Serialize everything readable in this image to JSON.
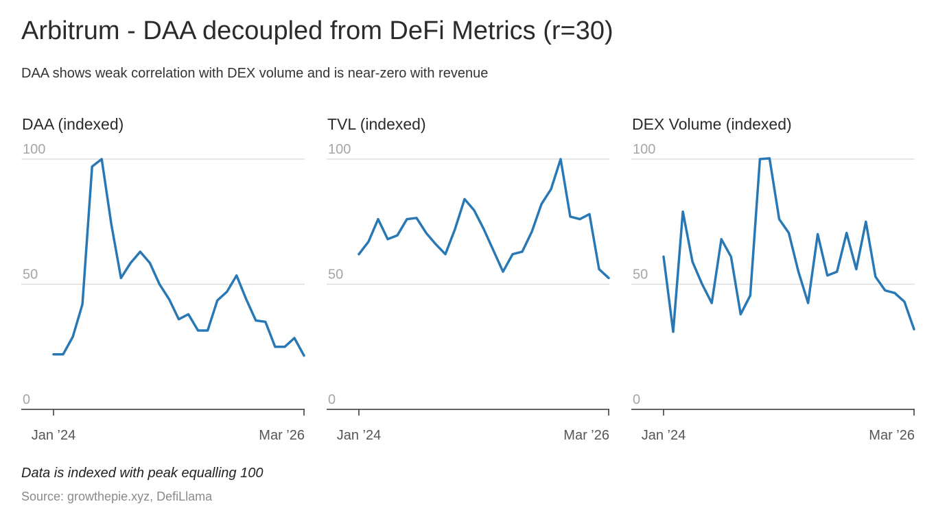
{
  "title": "Arbitrum - DAA decoupled from DeFi Metrics (r=30)",
  "subtitle": "DAA shows weak correlation with DEX volume and is near-zero with revenue",
  "note": "Data is indexed with peak equalling 100",
  "source": "Source: growthepie.xyz, DefiLlama",
  "colors": {
    "line": "#2878b5",
    "grid": "#dddddd",
    "axis": "#333333",
    "tick": "#a6a6a6"
  },
  "chart_data": [
    {
      "type": "line",
      "title": "DAA (indexed)",
      "ylim": [
        0,
        100
      ],
      "yticks": [
        0,
        50,
        100
      ],
      "xtick_labels": [
        "Jan ’24",
        "Mar ’26"
      ],
      "values": [
        22,
        22,
        29,
        42,
        97,
        100,
        74,
        52.5,
        58.5,
        63,
        58.5,
        50,
        44,
        36,
        38,
        31.5,
        31.5,
        43.5,
        47,
        53.5,
        44,
        35.5,
        35,
        25,
        25,
        28.5,
        21.5
      ]
    },
    {
      "type": "line",
      "title": "TVL (indexed)",
      "ylim": [
        0,
        100
      ],
      "yticks": [
        0,
        50,
        100
      ],
      "xtick_labels": [
        "Jan ’24",
        "Mar ’26"
      ],
      "values": [
        62,
        67,
        76,
        68,
        69.5,
        76,
        76.5,
        70.5,
        66,
        62,
        72,
        84,
        79.5,
        72,
        63.5,
        55,
        62,
        63,
        71,
        82,
        88,
        100,
        77,
        76,
        78,
        56,
        52.5
      ]
    },
    {
      "type": "line",
      "title": "DEX Volume (indexed)",
      "ylim": [
        0,
        100
      ],
      "yticks": [
        0,
        50,
        100
      ],
      "xtick_labels": [
        "Jan ’24",
        "Mar ’26"
      ],
      "values": [
        61,
        31,
        79,
        59,
        50,
        42.5,
        68,
        61,
        38,
        45.5,
        100,
        100.3,
        76,
        70.5,
        55,
        42.5,
        70,
        53.5,
        55,
        70.5,
        56,
        75,
        53,
        47.5,
        46.5,
        43,
        32
      ]
    }
  ]
}
